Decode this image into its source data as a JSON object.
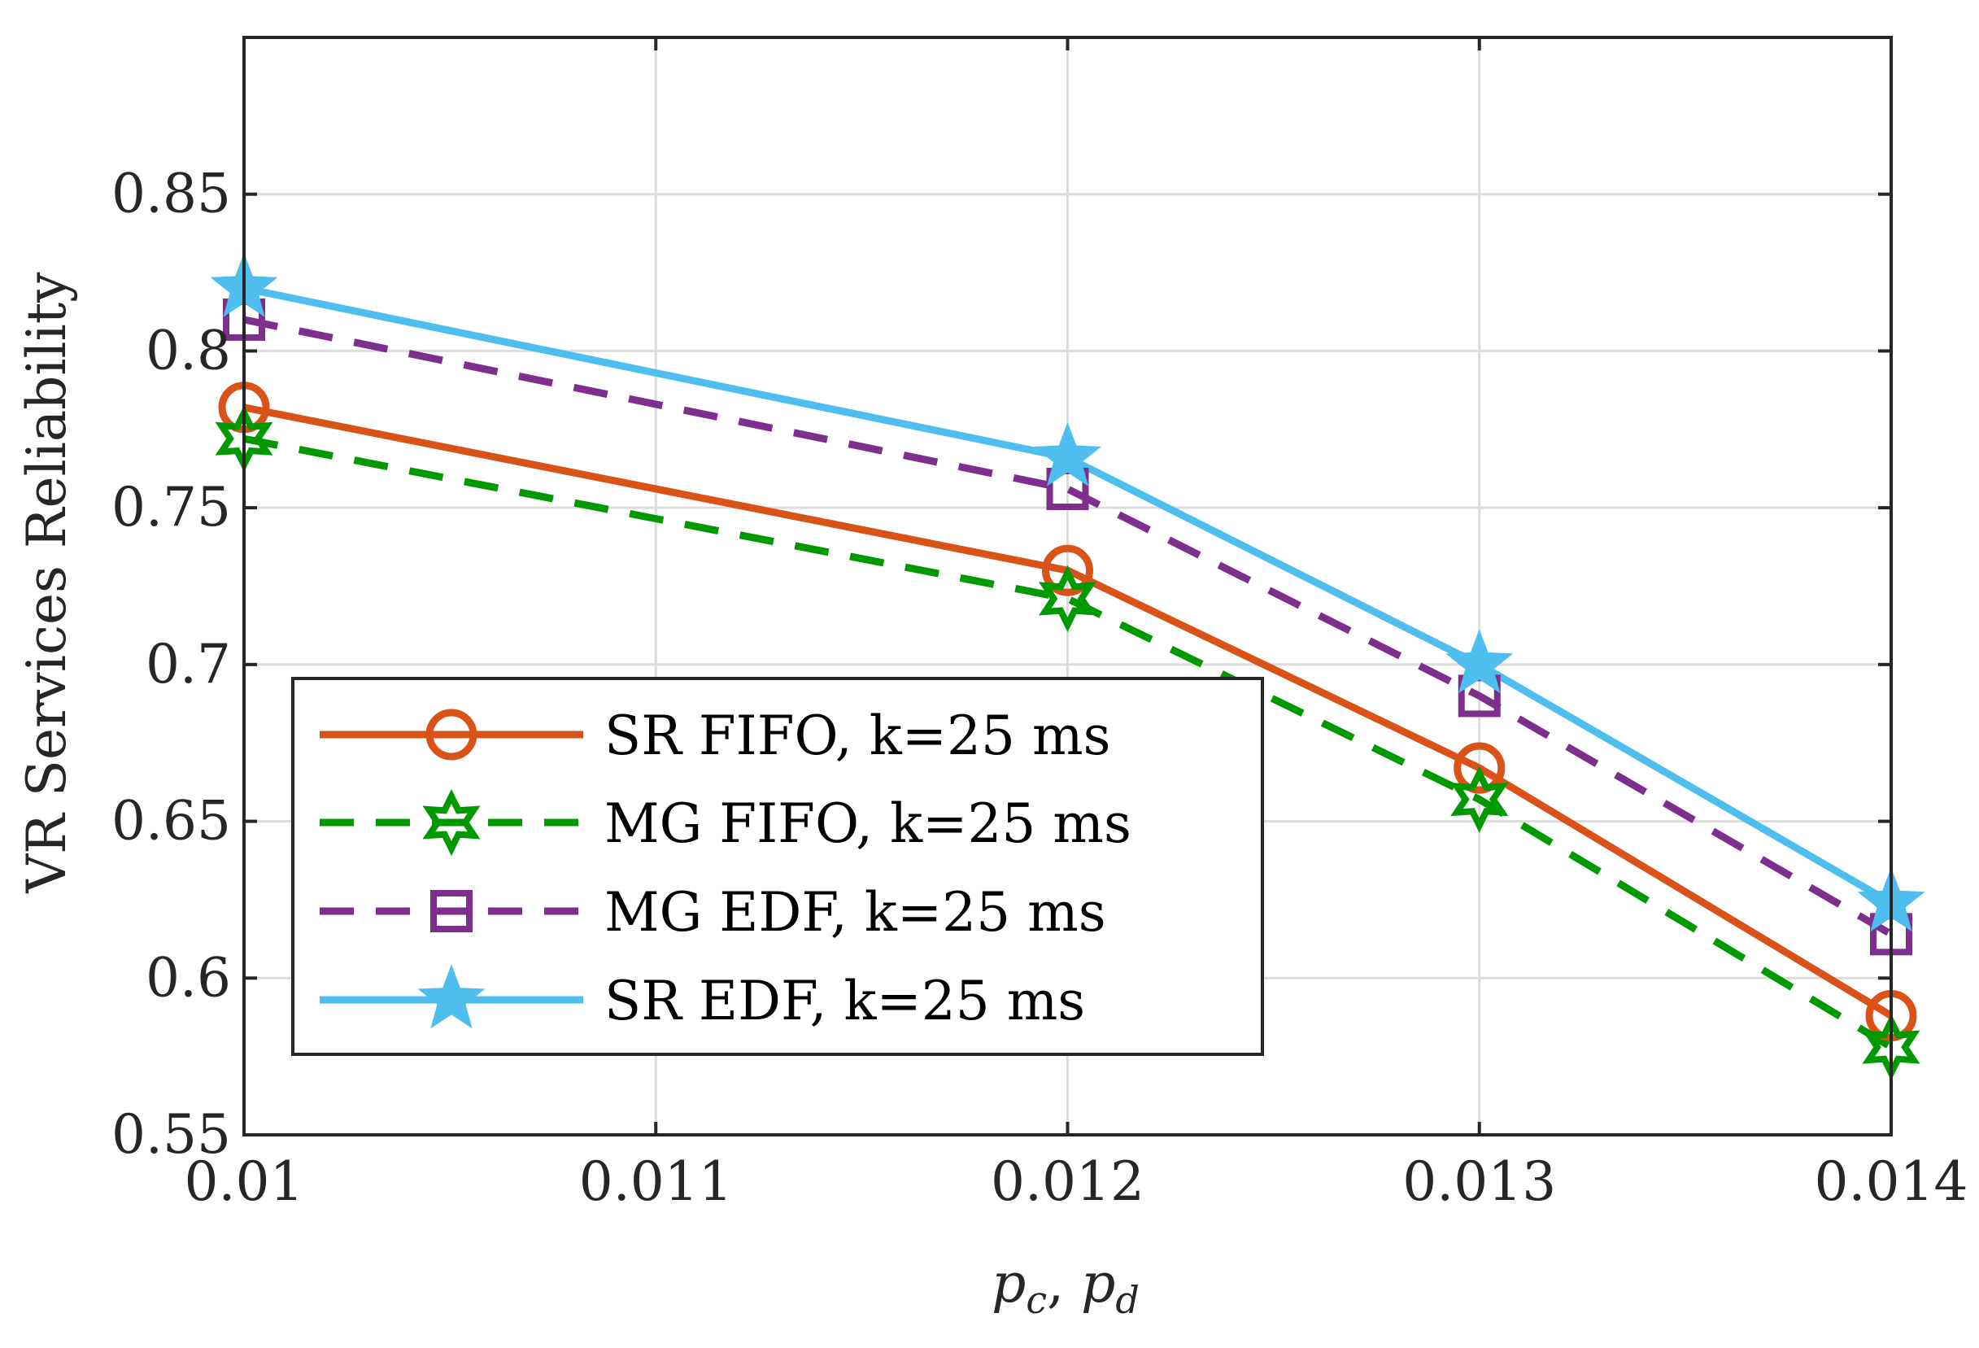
{
  "chart_data": {
    "type": "line",
    "title": "",
    "xlabel": "p_c, p_d",
    "xlabel_parts": {
      "p1": "p",
      "sub1": "c",
      "sep": ", ",
      "p2": "p",
      "sub2": "d"
    },
    "ylabel": "VR Services Reliability",
    "xlim": [
      0.01,
      0.014
    ],
    "ylim": [
      0.55,
      0.9
    ],
    "x_ticks": [
      0.01,
      0.011,
      0.012,
      0.013,
      0.014
    ],
    "x_tick_labels": [
      "0.01",
      "0.011",
      "0.012",
      "0.013",
      "0.014"
    ],
    "y_ticks": [
      0.55,
      0.6,
      0.65,
      0.7,
      0.75,
      0.8,
      0.85
    ],
    "y_tick_labels": [
      "0.55",
      "0.6",
      "0.65",
      "0.7",
      "0.75",
      "0.8",
      "0.85"
    ],
    "grid": true,
    "legend_position": "bottom-left",
    "x": [
      0.01,
      0.012,
      0.013,
      0.014
    ],
    "series": [
      {
        "name": "SR FIFO, k=25 ms",
        "color": "#D95319",
        "dash": "solid",
        "marker": "circle",
        "values": [
          0.782,
          0.73,
          0.667,
          0.588
        ]
      },
      {
        "name": "MG FIFO, k=25 ms",
        "color": "#009900",
        "dash": "dashed",
        "marker": "hexagram",
        "values": [
          0.772,
          0.721,
          0.657,
          0.578
        ]
      },
      {
        "name": "MG EDF, k=25 ms",
        "color": "#7E2F8E",
        "dash": "dashed",
        "marker": "square",
        "values": [
          0.81,
          0.756,
          0.69,
          0.614
        ]
      },
      {
        "name": "SR EDF, k=25 ms",
        "color": "#4DBEEE",
        "dash": "solid",
        "marker": "pentagram",
        "values": [
          0.82,
          0.766,
          0.7,
          0.624
        ]
      }
    ]
  }
}
